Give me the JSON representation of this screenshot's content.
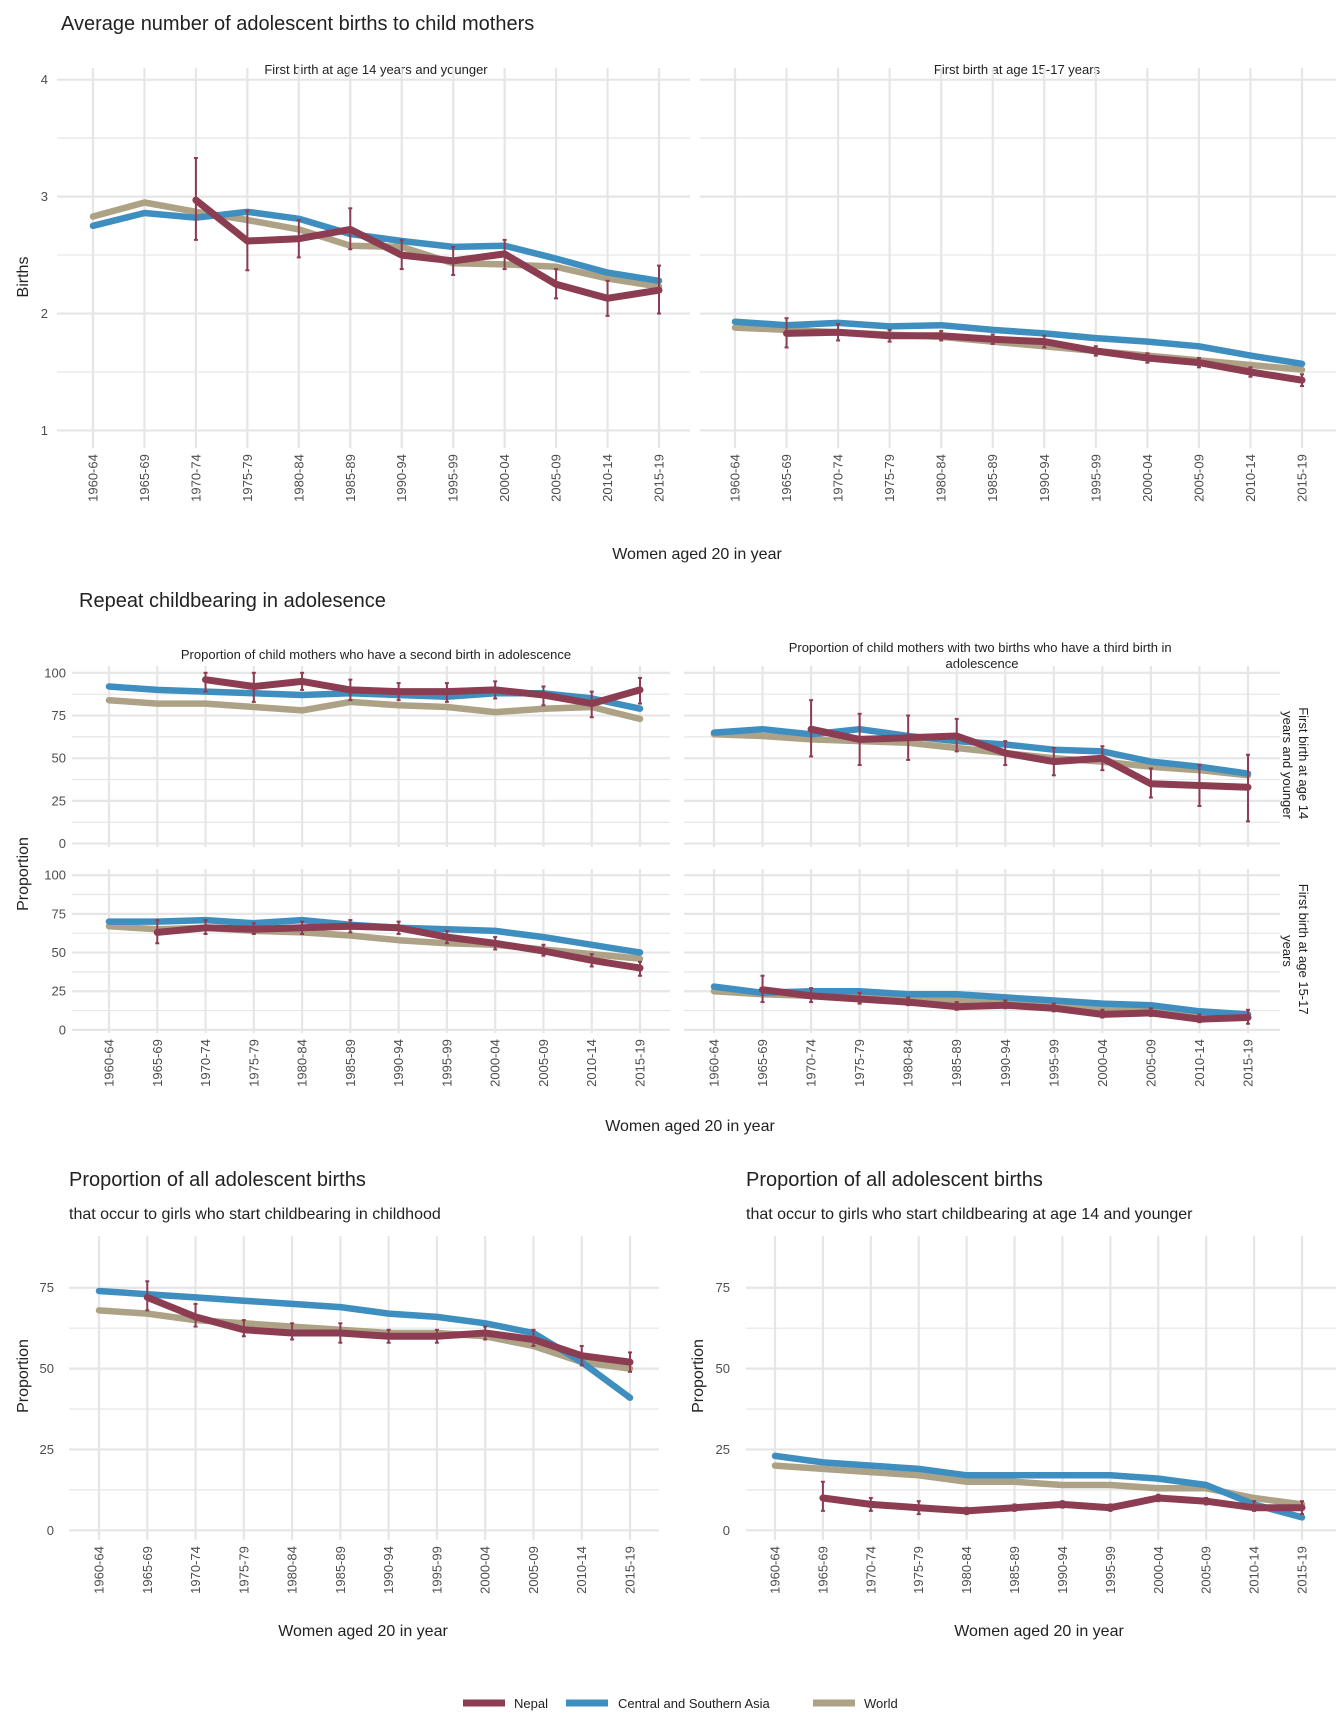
{
  "colors": {
    "nepal": "#8C3D52",
    "csa": "#3E8EC0",
    "world": "#ADA285",
    "grid": "#E6E6E6",
    "text": "#222222",
    "tick": "#4D4D4D"
  },
  "legend": {
    "nepal": "Nepal",
    "csa": "Central and Southern Asia",
    "world": "World"
  },
  "chart_data": [
    {
      "id": "births_14",
      "type": "line",
      "title": "Average number of adolescent births to child mothers",
      "subtitle": "First birth at age 14 years and younger",
      "xlabel": "Women aged 20 in year",
      "ylabel": "Births",
      "ylim": [
        0.85,
        4.1
      ],
      "yticks": [
        1,
        2,
        3,
        4
      ],
      "categories": [
        "1960-64",
        "1965-69",
        "1970-74",
        "1975-79",
        "1980-84",
        "1985-89",
        "1990-94",
        "1995-99",
        "2000-04",
        "2005-09",
        "2010-14",
        "2015-19"
      ],
      "series": [
        {
          "name": "World",
          "key": "world",
          "values": [
            2.83,
            2.95,
            2.87,
            2.8,
            2.72,
            2.58,
            2.57,
            2.43,
            2.42,
            2.4,
            2.3,
            2.23
          ]
        },
        {
          "name": "Central and Southern Asia",
          "key": "csa",
          "values": [
            2.75,
            2.86,
            2.82,
            2.87,
            2.81,
            2.68,
            2.62,
            2.57,
            2.58,
            2.47,
            2.35,
            2.28
          ]
        },
        {
          "name": "Nepal",
          "key": "nepal",
          "values": [
            null,
            null,
            2.97,
            2.62,
            2.64,
            2.72,
            2.5,
            2.45,
            2.51,
            2.25,
            2.13,
            2.2
          ],
          "lower": [
            null,
            null,
            2.63,
            2.37,
            2.48,
            2.55,
            2.38,
            2.33,
            2.38,
            2.13,
            1.98,
            2.0
          ],
          "upper": [
            null,
            null,
            3.33,
            2.88,
            2.8,
            2.9,
            2.63,
            2.57,
            2.63,
            2.38,
            2.28,
            2.41
          ]
        }
      ]
    },
    {
      "id": "births_1517",
      "type": "line",
      "subtitle": "First birth at age 15-17 years",
      "ylim": [
        0.85,
        4.1
      ],
      "yticks": [
        1,
        2,
        3,
        4
      ],
      "categories": [
        "1960-64",
        "1965-69",
        "1970-74",
        "1975-79",
        "1980-84",
        "1985-89",
        "1990-94",
        "1995-99",
        "2000-04",
        "2005-09",
        "2010-14",
        "2015-19"
      ],
      "series": [
        {
          "name": "World",
          "key": "world",
          "values": [
            1.88,
            1.86,
            1.84,
            1.82,
            1.8,
            1.76,
            1.72,
            1.68,
            1.64,
            1.6,
            1.56,
            1.52
          ]
        },
        {
          "name": "Central and Southern Asia",
          "key": "csa",
          "values": [
            1.93,
            1.9,
            1.92,
            1.89,
            1.9,
            1.86,
            1.83,
            1.79,
            1.76,
            1.72,
            1.64,
            1.57
          ]
        },
        {
          "name": "Nepal",
          "key": "nepal",
          "values": [
            null,
            1.83,
            1.84,
            1.81,
            1.81,
            1.78,
            1.76,
            1.68,
            1.62,
            1.58,
            1.5,
            1.43
          ],
          "lower": [
            null,
            1.71,
            1.77,
            1.76,
            1.77,
            1.74,
            1.71,
            1.64,
            1.58,
            1.54,
            1.46,
            1.38
          ],
          "upper": [
            null,
            1.96,
            1.91,
            1.86,
            1.85,
            1.82,
            1.81,
            1.72,
            1.66,
            1.62,
            1.54,
            1.48
          ]
        }
      ]
    },
    {
      "id": "second_14",
      "type": "line",
      "title": "Repeat childbearing in adolesence",
      "subtitle": "Proportion of child mothers who have a second birth in adolescence",
      "ylabel": "Proportion",
      "ylim": [
        -2,
        104
      ],
      "yticks": [
        0,
        25,
        50,
        75,
        100
      ],
      "categories": [
        "1960-64",
        "1965-69",
        "1970-74",
        "1975-79",
        "1980-84",
        "1985-89",
        "1990-94",
        "1995-99",
        "2000-04",
        "2005-09",
        "2010-14",
        "2015-19"
      ],
      "series": [
        {
          "name": "World",
          "key": "world",
          "values": [
            84,
            82,
            82,
            80,
            78,
            83,
            81,
            80,
            77,
            79,
            80,
            73
          ]
        },
        {
          "name": "Central and Southern Asia",
          "key": "csa",
          "values": [
            92,
            90,
            89,
            88,
            87,
            88,
            87,
            86,
            88,
            88,
            85,
            79
          ]
        },
        {
          "name": "Nepal",
          "key": "nepal",
          "values": [
            null,
            null,
            96,
            92,
            95,
            90,
            89,
            89,
            90,
            87,
            82,
            90
          ],
          "lower": [
            null,
            null,
            89,
            83,
            90,
            84,
            84,
            83,
            85,
            81,
            74,
            82
          ],
          "upper": [
            null,
            null,
            100,
            100,
            100,
            96,
            94,
            94,
            95,
            92,
            89,
            97
          ]
        }
      ]
    },
    {
      "id": "third_14",
      "type": "line",
      "subtitle": "Proportion of child mothers with two births who have a third birth in adolescence",
      "facet_label": "First birth at age 14 years and younger",
      "ylim": [
        -2,
        104
      ],
      "yticks": [
        0,
        25,
        50,
        75,
        100
      ],
      "categories": [
        "1960-64",
        "1965-69",
        "1970-74",
        "1975-79",
        "1980-84",
        "1985-89",
        "1990-94",
        "1995-99",
        "2000-04",
        "2005-09",
        "2010-14",
        "2015-19"
      ],
      "series": [
        {
          "name": "World",
          "key": "world",
          "values": [
            64,
            63,
            61,
            60,
            59,
            56,
            53,
            50,
            48,
            45,
            43,
            40
          ]
        },
        {
          "name": "Central and Southern Asia",
          "key": "csa",
          "values": [
            65,
            67,
            64,
            67,
            63,
            60,
            58,
            55,
            54,
            48,
            45,
            41
          ]
        },
        {
          "name": "Nepal",
          "key": "nepal",
          "values": [
            null,
            null,
            67,
            61,
            62,
            63,
            53,
            48,
            50,
            35,
            34,
            33
          ],
          "lower": [
            null,
            null,
            51,
            46,
            49,
            54,
            46,
            40,
            43,
            27,
            22,
            13
          ],
          "upper": [
            null,
            null,
            84,
            76,
            75,
            73,
            60,
            56,
            57,
            44,
            46,
            52
          ]
        }
      ]
    },
    {
      "id": "second_1517",
      "type": "line",
      "ylim": [
        -2,
        104
      ],
      "yticks": [
        0,
        25,
        50,
        75,
        100
      ],
      "categories": [
        "1960-64",
        "1965-69",
        "1970-74",
        "1975-79",
        "1980-84",
        "1985-89",
        "1990-94",
        "1995-99",
        "2000-04",
        "2005-09",
        "2010-14",
        "2015-19"
      ],
      "series": [
        {
          "name": "World",
          "key": "world",
          "values": [
            67,
            65,
            66,
            64,
            63,
            61,
            58,
            56,
            55,
            52,
            49,
            46
          ]
        },
        {
          "name": "Central and Southern Asia",
          "key": "csa",
          "values": [
            70,
            70,
            71,
            69,
            71,
            68,
            66,
            65,
            64,
            60,
            55,
            50
          ]
        },
        {
          "name": "Nepal",
          "key": "nepal",
          "values": [
            null,
            63,
            66,
            65,
            66,
            67,
            66,
            60,
            56,
            51,
            45,
            40
          ],
          "lower": [
            null,
            56,
            62,
            62,
            62,
            63,
            62,
            56,
            52,
            48,
            41,
            35
          ],
          "upper": [
            null,
            71,
            71,
            69,
            70,
            71,
            70,
            64,
            60,
            55,
            49,
            44
          ]
        }
      ]
    },
    {
      "id": "third_1517",
      "type": "line",
      "facet_label": "First birth at age 15-17 years",
      "ylim": [
        -2,
        104
      ],
      "yticks": [
        0,
        25,
        50,
        75,
        100
      ],
      "categories": [
        "1960-64",
        "1965-69",
        "1970-74",
        "1975-79",
        "1980-84",
        "1985-89",
        "1990-94",
        "1995-99",
        "2000-04",
        "2005-09",
        "2010-14",
        "2015-19"
      ],
      "series": [
        {
          "name": "World",
          "key": "world",
          "values": [
            25,
            23,
            22,
            21,
            20,
            19,
            17,
            15,
            14,
            13,
            11,
            10
          ]
        },
        {
          "name": "Central and Southern Asia",
          "key": "csa",
          "values": [
            28,
            24,
            25,
            25,
            23,
            23,
            21,
            19,
            17,
            16,
            12,
            10
          ]
        },
        {
          "name": "Nepal",
          "key": "nepal",
          "values": [
            null,
            26,
            22,
            20,
            18,
            15,
            16,
            14,
            10,
            11,
            7,
            8
          ],
          "lower": [
            null,
            18,
            18,
            17,
            16,
            13,
            14,
            12,
            8,
            9,
            5,
            4
          ],
          "upper": [
            null,
            35,
            27,
            24,
            21,
            18,
            19,
            17,
            13,
            14,
            10,
            13
          ]
        }
      ]
    },
    {
      "id": "share_childhood",
      "type": "line",
      "title": "Proportion of all adolescent births",
      "subtitle": "that occur to girls who start childbearing in childhood",
      "xlabel": "Women aged 20 in year",
      "ylabel": "Proportion",
      "ylim": [
        -3,
        91
      ],
      "yticks": [
        0,
        25,
        50,
        75
      ],
      "categories": [
        "1960-64",
        "1965-69",
        "1970-74",
        "1975-79",
        "1980-84",
        "1985-89",
        "1990-94",
        "1995-99",
        "2000-04",
        "2005-09",
        "2010-14",
        "2015-19"
      ],
      "series": [
        {
          "name": "World",
          "key": "world",
          "values": [
            68,
            67,
            65,
            64,
            63,
            62,
            61,
            61,
            60,
            57,
            52,
            50
          ]
        },
        {
          "name": "Central and Southern Asia",
          "key": "csa",
          "values": [
            74,
            73,
            72,
            71,
            70,
            69,
            67,
            66,
            64,
            61,
            52,
            41
          ]
        },
        {
          "name": "Nepal",
          "key": "nepal",
          "values": [
            null,
            72,
            66,
            62,
            61,
            61,
            60,
            60,
            61,
            59,
            54,
            52
          ],
          "lower": [
            null,
            68,
            63,
            60,
            59,
            58,
            58,
            58,
            59,
            57,
            51,
            49
          ],
          "upper": [
            null,
            77,
            70,
            65,
            64,
            64,
            62,
            62,
            63,
            62,
            57,
            55
          ]
        }
      ]
    },
    {
      "id": "share_14",
      "type": "line",
      "title": "Proportion of all adolescent births",
      "subtitle": "that occur to girls who start childbearing at age 14 and younger",
      "xlabel": "Women aged 20 in year",
      "ylabel": "Proportion",
      "ylim": [
        -3,
        91
      ],
      "yticks": [
        0,
        25,
        50,
        75
      ],
      "categories": [
        "1960-64",
        "1965-69",
        "1970-74",
        "1975-79",
        "1980-84",
        "1985-89",
        "1990-94",
        "1995-99",
        "2000-04",
        "2005-09",
        "2010-14",
        "2015-19"
      ],
      "series": [
        {
          "name": "World",
          "key": "world",
          "values": [
            20,
            19,
            18,
            17,
            15,
            15,
            14,
            14,
            13,
            13,
            10,
            8
          ]
        },
        {
          "name": "Central and Southern Asia",
          "key": "csa",
          "values": [
            23,
            21,
            20,
            19,
            17,
            17,
            17,
            17,
            16,
            14,
            8,
            4
          ]
        },
        {
          "name": "Nepal",
          "key": "nepal",
          "values": [
            null,
            10,
            8,
            7,
            6,
            7,
            8,
            7,
            10,
            9,
            7,
            7
          ],
          "lower": [
            null,
            6,
            6,
            5,
            5,
            6,
            7,
            6,
            9,
            8,
            6,
            5
          ],
          "upper": [
            null,
            15,
            10,
            9,
            7,
            8,
            9,
            8,
            11,
            10,
            9,
            9
          ]
        }
      ]
    }
  ]
}
